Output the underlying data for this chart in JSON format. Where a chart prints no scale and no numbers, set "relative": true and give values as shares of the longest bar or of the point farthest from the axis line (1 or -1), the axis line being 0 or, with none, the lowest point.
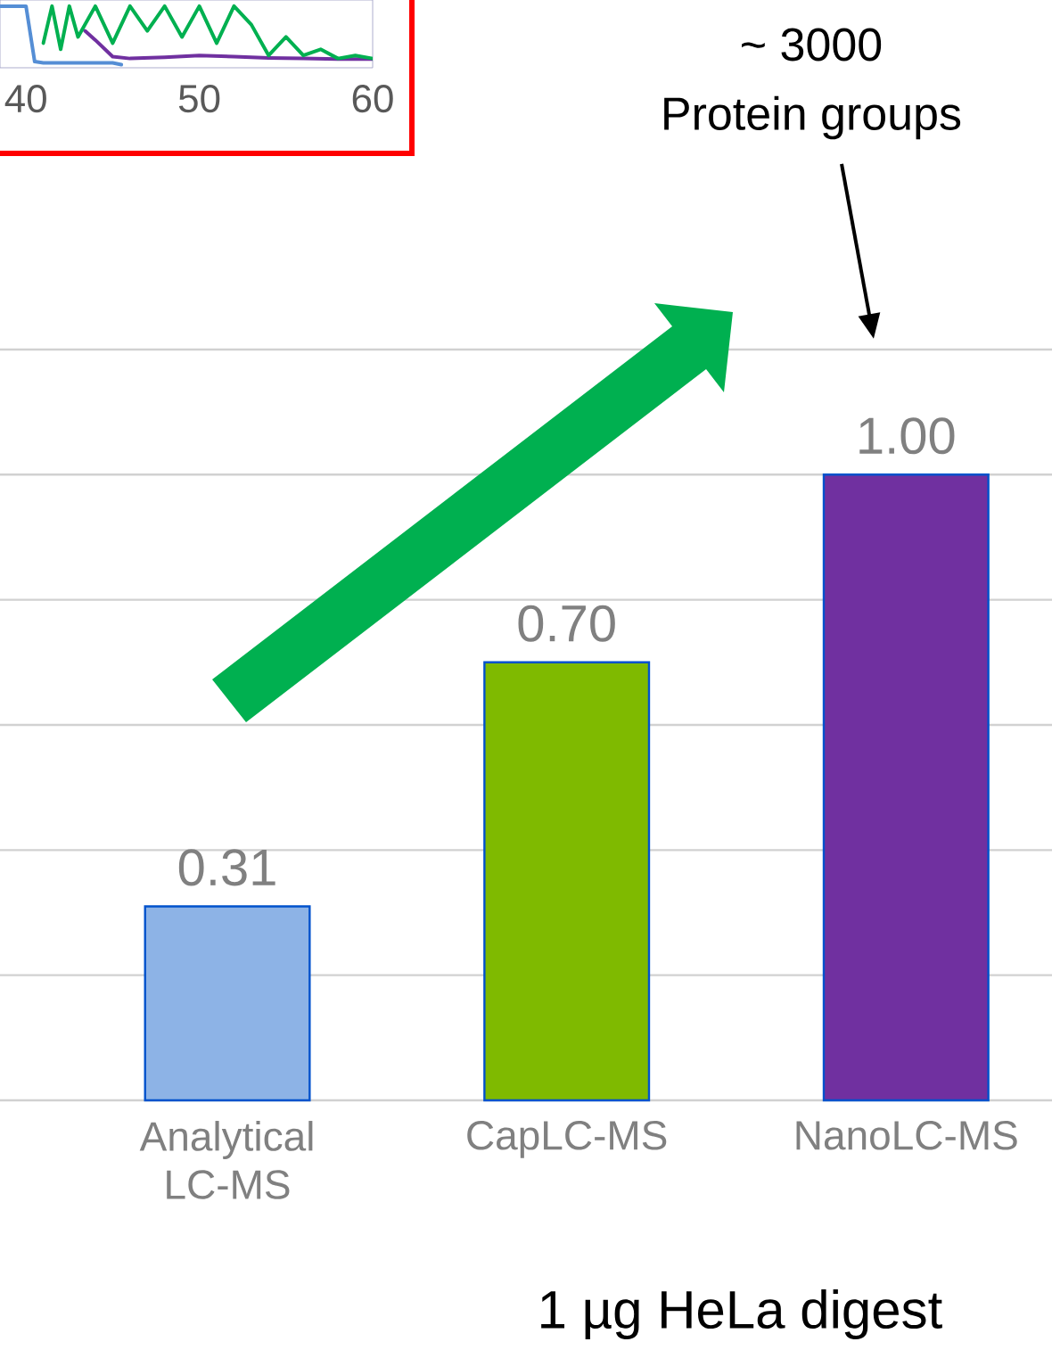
{
  "chart_data": [
    {
      "type": "bar",
      "categories": [
        "Analytical LC-MS",
        "CapLC-MS",
        "NanoLC-MS"
      ],
      "values": [
        0.31,
        0.7,
        1.0
      ],
      "colors": [
        "#8db3e6",
        "#7fba00",
        "#7030a0"
      ],
      "value_labels": [
        "0.31",
        "0.70",
        "1.00"
      ],
      "grid": "y",
      "annotations": [
        "~ 3000",
        "Protein groups",
        "1 µg HeLa digest"
      ]
    },
    {
      "type": "line",
      "relative": true,
      "xlim": [
        38.5,
        60
      ],
      "xticks": [
        40,
        50,
        60
      ],
      "tick_labels": "x",
      "series": [
        {
          "color": "#558ed5",
          "x": [
            38.5,
            40,
            40.5,
            41,
            43,
            45,
            45.5
          ],
          "values": [
            1,
            1,
            0.1,
            0.08,
            0.08,
            0.08,
            0.05
          ]
        },
        {
          "color": "#7030a0",
          "x": [
            43.4,
            44,
            45,
            46,
            48,
            50,
            52,
            54,
            56,
            58,
            60
          ],
          "values": [
            0.6,
            0.45,
            0.18,
            0.15,
            0.17,
            0.2,
            0.18,
            0.16,
            0.15,
            0.14,
            0.14
          ]
        },
        {
          "color": "#00b050",
          "x": [
            41,
            41.5,
            42,
            42.5,
            43,
            44,
            45,
            46,
            47,
            48,
            49,
            50,
            51,
            52,
            53,
            54,
            55,
            56,
            57,
            58,
            59,
            60
          ],
          "values": [
            0.4,
            1,
            0.3,
            1,
            0.5,
            1,
            0.4,
            1,
            0.6,
            1,
            0.5,
            1,
            0.4,
            1,
            0.7,
            0.2,
            0.5,
            0.2,
            0.3,
            0.15,
            0.2,
            0.15
          ]
        }
      ]
    }
  ]
}
